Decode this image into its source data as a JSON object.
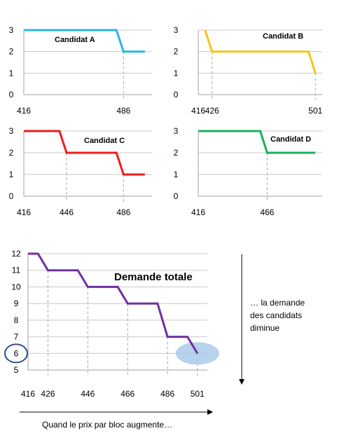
{
  "chart_data": [
    {
      "type": "line",
      "title": "Candidat A",
      "color": "#29b6e6",
      "x_ticks": [
        416,
        486
      ],
      "ylim": [
        0,
        3
      ],
      "y_ticks": [
        0,
        1,
        2,
        3
      ],
      "series": [
        {
          "x": [
            416,
            481,
            486,
            501
          ],
          "y": [
            3,
            3,
            2,
            2
          ]
        }
      ],
      "drop_lines_at": [
        486
      ]
    },
    {
      "type": "line",
      "title": "Candidat B",
      "color": "#f5c518",
      "x_ticks": [
        416,
        426,
        501
      ],
      "ylim": [
        0,
        3
      ],
      "y_ticks": [
        0,
        1,
        2,
        3
      ],
      "series": [
        {
          "x": [
            421,
            426,
            496,
            501
          ],
          "y": [
            3,
            2,
            2,
            1
          ]
        }
      ],
      "drop_lines_at": [
        426,
        501
      ]
    },
    {
      "type": "line",
      "title": "Candidat C",
      "color": "#ee1c1c",
      "x_ticks": [
        416,
        446,
        486
      ],
      "ylim": [
        0,
        3
      ],
      "y_ticks": [
        0,
        1,
        2,
        3
      ],
      "series": [
        {
          "x": [
            416,
            441,
            446,
            481,
            486,
            501
          ],
          "y": [
            3,
            3,
            2,
            2,
            1,
            1
          ]
        }
      ],
      "drop_lines_at": [
        446,
        486
      ]
    },
    {
      "type": "line",
      "title": "Candidat D",
      "color": "#1aaf5d",
      "x_ticks": [
        416,
        466
      ],
      "ylim": [
        0,
        3
      ],
      "y_ticks": [
        0,
        1,
        2,
        3
      ],
      "series": [
        {
          "x": [
            416,
            461,
            466,
            501
          ],
          "y": [
            3,
            3,
            2,
            2
          ]
        }
      ],
      "drop_lines_at": [
        466
      ]
    },
    {
      "type": "line",
      "title": "Demande totale",
      "color": "#7030a0",
      "x_ticks": [
        416,
        426,
        446,
        466,
        486,
        501
      ],
      "ylim": [
        5,
        12
      ],
      "y_ticks": [
        5,
        6,
        7,
        8,
        9,
        10,
        11,
        12
      ],
      "series": [
        {
          "x": [
            416,
            421,
            426,
            441,
            446,
            461,
            466,
            481,
            486,
            496,
            501
          ],
          "y": [
            12,
            12,
            11,
            11,
            10,
            10,
            9,
            9,
            7,
            7,
            6
          ]
        }
      ],
      "drop_lines_at": [
        426,
        446,
        466,
        486,
        501
      ],
      "highlight_y": 6,
      "highlight_point": {
        "x": 501,
        "y": 6
      }
    }
  ],
  "annotations": {
    "right_note": [
      "… la demande",
      "des candidats",
      "diminue"
    ],
    "bottom_note": "Quand le prix par bloc augmente…"
  }
}
